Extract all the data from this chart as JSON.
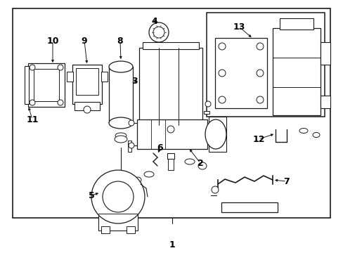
{
  "bg_color": "#ffffff",
  "outer_border_color": "#000000",
  "line_color": "#1a1a1a",
  "label_fontsize": 9,
  "label_color": "#000000"
}
